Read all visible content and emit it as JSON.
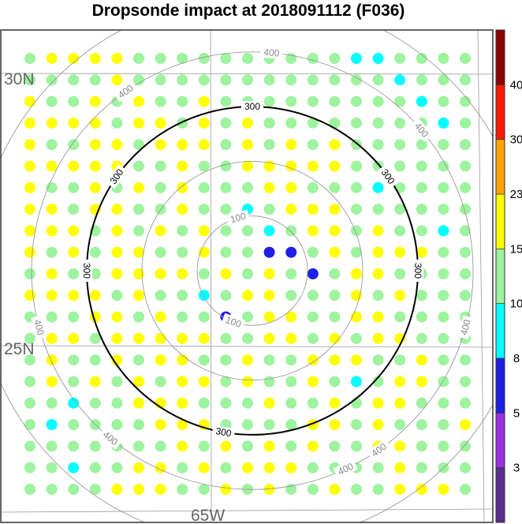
{
  "chart_data": {
    "type": "scatter",
    "title": "Dropsonde impact at 2018091112 (F036)",
    "map_labels": {
      "lat_north": "30N",
      "lat_south": "25N",
      "lon": "65W"
    },
    "rings": [
      {
        "value": 100,
        "label": "100",
        "style": "thin-gray"
      },
      {
        "value": 200,
        "label": "",
        "style": "thin-gray"
      },
      {
        "value": 300,
        "label": "300",
        "style": "thick-black"
      },
      {
        "value": 400,
        "label": "400",
        "style": "thin-gray"
      },
      {
        "value": 500,
        "label": "",
        "style": "thin-gray"
      }
    ],
    "colorbar": {
      "ticks": [
        "3",
        "5",
        "8",
        "10",
        "15",
        "23",
        "30",
        "40"
      ],
      "colors": [
        "#5b2d8e",
        "#9b30e0",
        "#1e1ee6",
        "#00ffff",
        "#9ef39e",
        "#ffff00",
        "#ffa500",
        "#ff1a00",
        "#8b0000"
      ]
    },
    "grid": {
      "columns": 21,
      "rows": 21,
      "default_category": 4
    },
    "category_overrides": [
      {
        "row": 0,
        "col": 1,
        "category": 5
      },
      {
        "row": 0,
        "col": 2,
        "category": 5
      },
      {
        "row": 0,
        "col": 3,
        "category": 5
      },
      {
        "row": 0,
        "col": 4,
        "category": 5
      },
      {
        "row": 0,
        "col": 15,
        "category": 3
      },
      {
        "row": 0,
        "col": 16,
        "category": 3
      },
      {
        "row": 1,
        "col": 4,
        "category": 5
      },
      {
        "row": 1,
        "col": 17,
        "category": 3
      },
      {
        "row": 2,
        "col": 0,
        "category": 5
      },
      {
        "row": 2,
        "col": 3,
        "category": 5
      },
      {
        "row": 2,
        "col": 5,
        "category": 5
      },
      {
        "row": 2,
        "col": 8,
        "category": 5
      },
      {
        "row": 2,
        "col": 18,
        "category": 3
      },
      {
        "row": 3,
        "col": 0,
        "category": 5
      },
      {
        "row": 3,
        "col": 1,
        "category": 5
      },
      {
        "row": 3,
        "col": 2,
        "category": 5
      },
      {
        "row": 3,
        "col": 3,
        "category": 5
      },
      {
        "row": 3,
        "col": 5,
        "category": 5
      },
      {
        "row": 3,
        "col": 6,
        "category": 5
      },
      {
        "row": 3,
        "col": 8,
        "category": 5
      },
      {
        "row": 3,
        "col": 10,
        "category": 5
      },
      {
        "row": 3,
        "col": 19,
        "category": 3
      },
      {
        "row": 4,
        "col": 0,
        "category": 5
      },
      {
        "row": 4,
        "col": 3,
        "category": 5
      },
      {
        "row": 4,
        "col": 4,
        "category": 5
      },
      {
        "row": 4,
        "col": 6,
        "category": 5
      },
      {
        "row": 4,
        "col": 7,
        "category": 5
      },
      {
        "row": 4,
        "col": 8,
        "category": 5
      },
      {
        "row": 4,
        "col": 10,
        "category": 5
      },
      {
        "row": 4,
        "col": 12,
        "category": 5
      },
      {
        "row": 4,
        "col": 14,
        "category": 5
      },
      {
        "row": 5,
        "col": 0,
        "category": 5
      },
      {
        "row": 5,
        "col": 1,
        "category": 5
      },
      {
        "row": 5,
        "col": 2,
        "category": 5
      },
      {
        "row": 5,
        "col": 3,
        "category": 5
      },
      {
        "row": 5,
        "col": 4,
        "category": 5
      },
      {
        "row": 5,
        "col": 7,
        "category": 5
      },
      {
        "row": 5,
        "col": 10,
        "category": 5
      },
      {
        "row": 5,
        "col": 11,
        "category": 5
      },
      {
        "row": 5,
        "col": 12,
        "category": 5
      },
      {
        "row": 5,
        "col": 13,
        "category": 5
      },
      {
        "row": 5,
        "col": 14,
        "category": 5
      },
      {
        "row": 6,
        "col": 0,
        "category": 5
      },
      {
        "row": 6,
        "col": 3,
        "category": 5
      },
      {
        "row": 6,
        "col": 5,
        "category": 5
      },
      {
        "row": 6,
        "col": 7,
        "category": 5
      },
      {
        "row": 6,
        "col": 11,
        "category": 5
      },
      {
        "row": 6,
        "col": 12,
        "category": 5
      },
      {
        "row": 6,
        "col": 16,
        "category": 3
      },
      {
        "row": 7,
        "col": 0,
        "category": 5
      },
      {
        "row": 7,
        "col": 1,
        "category": 5
      },
      {
        "row": 7,
        "col": 3,
        "category": 5
      },
      {
        "row": 7,
        "col": 4,
        "category": 5
      },
      {
        "row": 7,
        "col": 7,
        "category": 5
      },
      {
        "row": 7,
        "col": 10,
        "category": 3
      },
      {
        "row": 7,
        "col": 12,
        "category": 5
      },
      {
        "row": 7,
        "col": 13,
        "category": 5
      },
      {
        "row": 7,
        "col": 14,
        "category": 5
      },
      {
        "row": 8,
        "col": 0,
        "category": 5
      },
      {
        "row": 8,
        "col": 1,
        "category": 5
      },
      {
        "row": 8,
        "col": 2,
        "category": 5
      },
      {
        "row": 8,
        "col": 4,
        "category": 5
      },
      {
        "row": 8,
        "col": 6,
        "category": 5
      },
      {
        "row": 8,
        "col": 8,
        "category": 5
      },
      {
        "row": 8,
        "col": 11,
        "category": 3
      },
      {
        "row": 8,
        "col": 13,
        "category": 5
      },
      {
        "row": 8,
        "col": 14,
        "category": 5
      },
      {
        "row": 8,
        "col": 16,
        "category": 5
      },
      {
        "row": 8,
        "col": 19,
        "category": 3
      },
      {
        "row": 9,
        "col": 0,
        "category": 5
      },
      {
        "row": 9,
        "col": 2,
        "category": 5
      },
      {
        "row": 9,
        "col": 4,
        "category": 5
      },
      {
        "row": 9,
        "col": 5,
        "category": 5
      },
      {
        "row": 9,
        "col": 8,
        "category": 5
      },
      {
        "row": 9,
        "col": 11,
        "category": 2
      },
      {
        "row": 9,
        "col": 12,
        "category": 2
      },
      {
        "row": 9,
        "col": 14,
        "category": 5
      },
      {
        "row": 9,
        "col": 16,
        "category": 5
      },
      {
        "row": 9,
        "col": 17,
        "category": 5
      },
      {
        "row": 9,
        "col": 18,
        "category": 5
      },
      {
        "row": 10,
        "col": 1,
        "category": 5
      },
      {
        "row": 10,
        "col": 4,
        "category": 5
      },
      {
        "row": 10,
        "col": 5,
        "category": 5
      },
      {
        "row": 10,
        "col": 6,
        "category": 5
      },
      {
        "row": 10,
        "col": 7,
        "category": 5
      },
      {
        "row": 10,
        "col": 9,
        "category": 5
      },
      {
        "row": 10,
        "col": 11,
        "category": 5
      },
      {
        "row": 10,
        "col": 13,
        "category": 2
      },
      {
        "row": 10,
        "col": 15,
        "category": 5
      },
      {
        "row": 10,
        "col": 16,
        "category": 5
      },
      {
        "row": 11,
        "col": 0,
        "category": 5
      },
      {
        "row": 11,
        "col": 1,
        "category": 5
      },
      {
        "row": 11,
        "col": 2,
        "category": 5
      },
      {
        "row": 11,
        "col": 3,
        "category": 5
      },
      {
        "row": 11,
        "col": 5,
        "category": 5
      },
      {
        "row": 11,
        "col": 8,
        "category": 3
      },
      {
        "row": 11,
        "col": 10,
        "category": 5
      },
      {
        "row": 11,
        "col": 11,
        "category": 5
      },
      {
        "row": 11,
        "col": 15,
        "category": 5
      },
      {
        "row": 11,
        "col": 17,
        "category": 5
      },
      {
        "row": 12,
        "col": 3,
        "category": 5
      },
      {
        "row": 12,
        "col": 4,
        "category": 5
      },
      {
        "row": 12,
        "col": 6,
        "category": 5
      },
      {
        "row": 12,
        "col": 9,
        "category": 2
      },
      {
        "row": 12,
        "col": 11,
        "category": 5
      },
      {
        "row": 12,
        "col": 12,
        "category": 5
      },
      {
        "row": 12,
        "col": 15,
        "category": 5
      },
      {
        "row": 12,
        "col": 16,
        "category": 5
      },
      {
        "row": 13,
        "col": 1,
        "category": 5
      },
      {
        "row": 13,
        "col": 2,
        "category": 5
      },
      {
        "row": 13,
        "col": 4,
        "category": 5
      },
      {
        "row": 13,
        "col": 5,
        "category": 5
      },
      {
        "row": 13,
        "col": 6,
        "category": 5
      },
      {
        "row": 13,
        "col": 7,
        "category": 5
      },
      {
        "row": 13,
        "col": 8,
        "category": 5
      },
      {
        "row": 13,
        "col": 11,
        "category": 5
      },
      {
        "row": 13,
        "col": 12,
        "category": 5
      },
      {
        "row": 13,
        "col": 14,
        "category": 5
      },
      {
        "row": 13,
        "col": 16,
        "category": 5
      },
      {
        "row": 13,
        "col": 17,
        "category": 5
      },
      {
        "row": 14,
        "col": 1,
        "category": 5
      },
      {
        "row": 14,
        "col": 4,
        "category": 5
      },
      {
        "row": 14,
        "col": 6,
        "category": 5
      },
      {
        "row": 14,
        "col": 7,
        "category": 5
      },
      {
        "row": 14,
        "col": 10,
        "category": 5
      },
      {
        "row": 14,
        "col": 13,
        "category": 5
      },
      {
        "row": 14,
        "col": 14,
        "category": 5
      },
      {
        "row": 14,
        "col": 15,
        "category": 5
      },
      {
        "row": 14,
        "col": 18,
        "category": 5
      },
      {
        "row": 15,
        "col": 1,
        "category": 5
      },
      {
        "row": 15,
        "col": 3,
        "category": 5
      },
      {
        "row": 15,
        "col": 5,
        "category": 5
      },
      {
        "row": 15,
        "col": 7,
        "category": 5
      },
      {
        "row": 15,
        "col": 8,
        "category": 5
      },
      {
        "row": 15,
        "col": 10,
        "category": 5
      },
      {
        "row": 15,
        "col": 13,
        "category": 5
      },
      {
        "row": 15,
        "col": 15,
        "category": 3
      },
      {
        "row": 15,
        "col": 17,
        "category": 5
      },
      {
        "row": 15,
        "col": 18,
        "category": 5
      },
      {
        "row": 16,
        "col": 2,
        "category": 3
      },
      {
        "row": 16,
        "col": 5,
        "category": 5
      },
      {
        "row": 16,
        "col": 6,
        "category": 5
      },
      {
        "row": 16,
        "col": 7,
        "category": 5
      },
      {
        "row": 16,
        "col": 11,
        "category": 5
      },
      {
        "row": 16,
        "col": 14,
        "category": 5
      },
      {
        "row": 16,
        "col": 16,
        "category": 5
      },
      {
        "row": 16,
        "col": 17,
        "category": 5
      },
      {
        "row": 17,
        "col": 1,
        "category": 3
      },
      {
        "row": 17,
        "col": 6,
        "category": 5
      },
      {
        "row": 17,
        "col": 7,
        "category": 5
      },
      {
        "row": 17,
        "col": 8,
        "category": 5
      },
      {
        "row": 17,
        "col": 13,
        "category": 5
      },
      {
        "row": 17,
        "col": 14,
        "category": 5
      },
      {
        "row": 17,
        "col": 16,
        "category": 5
      },
      {
        "row": 17,
        "col": 20,
        "category": 5
      },
      {
        "row": 18,
        "col": 7,
        "category": 5
      },
      {
        "row": 18,
        "col": 9,
        "category": 5
      },
      {
        "row": 18,
        "col": 11,
        "category": 5
      },
      {
        "row": 18,
        "col": 13,
        "category": 5
      },
      {
        "row": 18,
        "col": 16,
        "category": 5
      },
      {
        "row": 18,
        "col": 17,
        "category": 5
      },
      {
        "row": 19,
        "col": 2,
        "category": 3
      },
      {
        "row": 19,
        "col": 5,
        "category": 5
      },
      {
        "row": 19,
        "col": 6,
        "category": 5
      },
      {
        "row": 19,
        "col": 8,
        "category": 5
      },
      {
        "row": 19,
        "col": 10,
        "category": 5
      },
      {
        "row": 19,
        "col": 11,
        "category": 5
      },
      {
        "row": 19,
        "col": 12,
        "category": 5
      },
      {
        "row": 19,
        "col": 17,
        "category": 5
      },
      {
        "row": 20,
        "col": 4,
        "category": 5
      },
      {
        "row": 20,
        "col": 5,
        "category": 5
      },
      {
        "row": 20,
        "col": 6,
        "category": 5
      },
      {
        "row": 20,
        "col": 9,
        "category": 5
      },
      {
        "row": 20,
        "col": 11,
        "category": 5
      },
      {
        "row": 20,
        "col": 14,
        "category": 5
      },
      {
        "row": 20,
        "col": 17,
        "category": 5
      },
      {
        "row": 20,
        "col": 18,
        "category": 5
      },
      {
        "row": 20,
        "col": 19,
        "category": 5
      }
    ]
  }
}
